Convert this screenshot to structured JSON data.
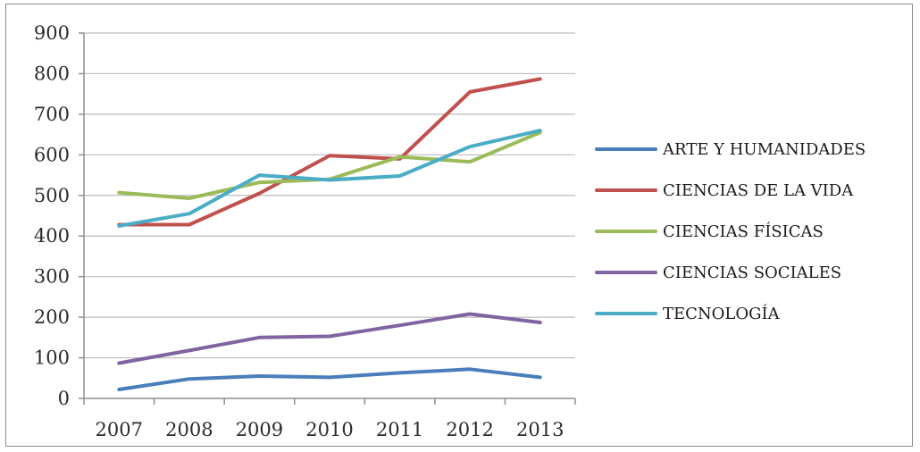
{
  "chart_data": {
    "type": "line",
    "x": [
      "2007",
      "2008",
      "2009",
      "2010",
      "2011",
      "2012",
      "2013"
    ],
    "ylim": [
      0,
      900
    ],
    "yticks": [
      0,
      100,
      200,
      300,
      400,
      500,
      600,
      700,
      800,
      900
    ],
    "grid": true,
    "legend_position": "right",
    "series": [
      {
        "name": "ARTE Y HUMANIDADES",
        "color": "#4a7ebb",
        "values": [
          22,
          48,
          55,
          52,
          63,
          72,
          52
        ]
      },
      {
        "name": "CIENCIAS DE LA VIDA",
        "color": "#c0504d",
        "values": [
          428,
          428,
          505,
          598,
          590,
          755,
          787
        ]
      },
      {
        "name": "CIENCIAS FÍSICAS",
        "color": "#9bbb59",
        "values": [
          507,
          493,
          532,
          540,
          595,
          583,
          655
        ]
      },
      {
        "name": "CIENCIAS SOCIALES",
        "color": "#8064a2",
        "values": [
          87,
          118,
          150,
          153,
          180,
          208,
          187
        ]
      },
      {
        "name": "TECNOLOGÍA",
        "color": "#4bacc6",
        "values": [
          425,
          455,
          550,
          538,
          548,
          620,
          660
        ]
      }
    ]
  }
}
